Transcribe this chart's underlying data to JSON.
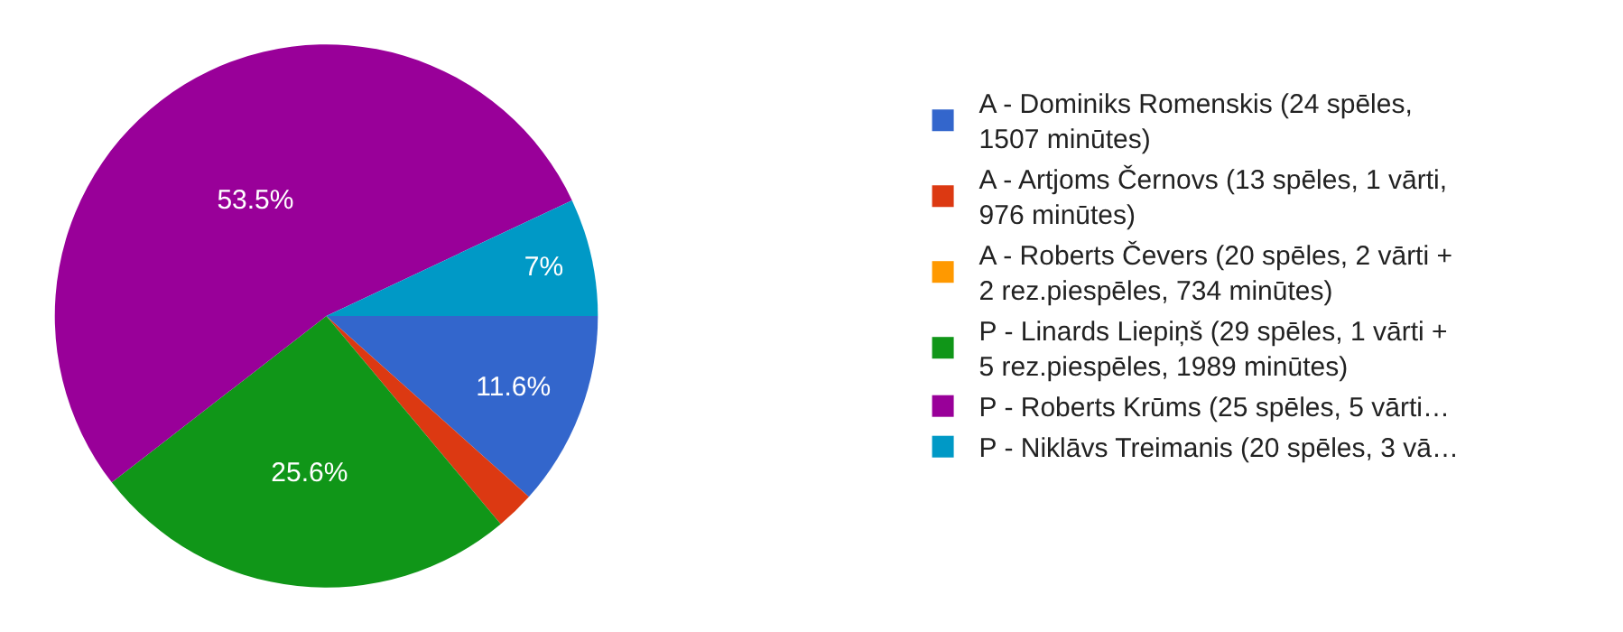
{
  "chart_data": {
    "type": "pie",
    "categories": [
      "A - Dominiks Romenskis (24 spēles,\n1507 minūtes)",
      "A - Artjoms Černovs (13 spēles, 1 vārti,\n976 minūtes)",
      "A - Roberts Čevers (20 spēles, 2 vārti +\n2 rez.piespēles, 734 minūtes)",
      "P - Linards Liepiņš (29 spēles, 1 vārti +\n5 rez.piespēles, 1989 minūtes)",
      "P - Roberts Krūms (25 spēles, 5 vārti…",
      "P - Niklāvs Treimanis (20 spēles, 3 vā…"
    ],
    "values": [
      11.6,
      2.3,
      0,
      25.6,
      53.5,
      7
    ],
    "colors": [
      "#3366cc",
      "#dc3912",
      "#ff9900",
      "#109618",
      "#990099",
      "#0099c6"
    ],
    "value_labels": [
      "11.6%",
      null,
      null,
      "25.6%",
      "53.5%",
      "7%"
    ],
    "legend": "right"
  }
}
